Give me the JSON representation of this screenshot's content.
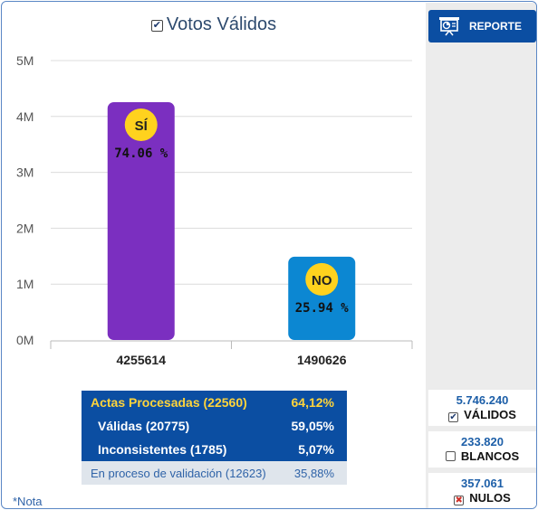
{
  "chart": {
    "title": "Votos Válidos"
  },
  "chart_data": {
    "type": "bar",
    "title": "Votos Válidos",
    "categories": [
      "4255614",
      "1490626"
    ],
    "values": [
      4255614,
      1490626
    ],
    "bar_badges": [
      "SÍ",
      "NO"
    ],
    "bar_percents": [
      "74.06 %",
      "25.94 %"
    ],
    "bar_colors": [
      "#7b2fc0",
      "#0c87d2"
    ],
    "badge_color": "#ffd21e",
    "y_ticks": [
      "0M",
      "1M",
      "2M",
      "3M",
      "4M",
      "5M"
    ],
    "ylim": [
      0,
      5000000
    ],
    "grid": true
  },
  "stats": {
    "actas": {
      "label": "Actas Procesadas (22560)",
      "pct": "64,12%"
    },
    "validas": {
      "label": "Válidas (20775)",
      "pct": "59,05%"
    },
    "inconsistentes": {
      "label": "Inconsistentes (1785)",
      "pct": "5,07%"
    },
    "en_proceso": {
      "label": "En proceso de validación (12623)",
      "pct": "35,88%"
    }
  },
  "nota": "*Nota",
  "side": {
    "reporte_label": "REPORTE",
    "validos": {
      "value": "5.746.240",
      "label": "VÁLIDOS",
      "mark": "✔"
    },
    "blancos": {
      "value": "233.820",
      "label": "BLANCOS",
      "mark": ""
    },
    "nulos": {
      "value": "357.061",
      "label": "NULOS",
      "mark": "✖"
    }
  },
  "colors": {
    "accent_blue": "#0b4ea2",
    "yellow": "#ffd43b"
  }
}
